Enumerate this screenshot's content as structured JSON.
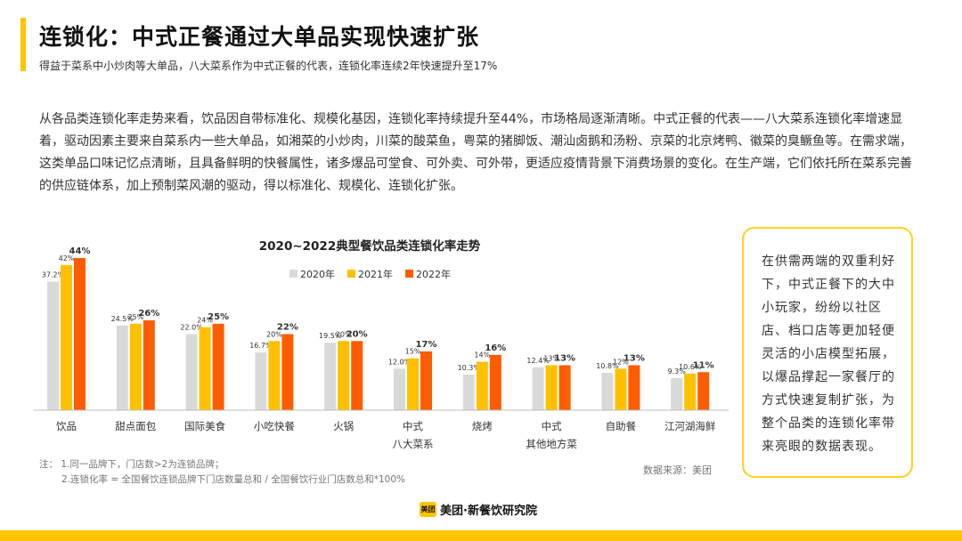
{
  "colors": {
    "accent": "#FFC400",
    "grey": "#D9D9D9",
    "yellow": "#FFC000",
    "orange": "#FF5C00",
    "axis": "#BFBFBF"
  },
  "header": {
    "title": "连锁化：中式正餐通过大单品实现快速扩张",
    "subtitle": "得益于菜系中小炒肉等大单品，八大菜系作为中式正餐的代表，连锁化率连续2年快速提升至17%"
  },
  "body_text": "从各品类连锁化率走势来看，饮品因自带标准化、规模化基因，连锁化率持续提升至44%，市场格局逐渐清晰。中式正餐的代表——八大菜系连锁化率增速显着，驱动因素主要来自菜系内一些大单品，如湘菜的小炒肉，川菜的酸菜鱼，粤菜的猪脚饭、潮汕卤鹅和汤粉、京菜的北京烤鸭、徽菜的臭鳜鱼等。在需求端，这类单品口味记忆点清晰，且具备鲜明的快餐属性，诸多爆品可堂食、可外卖、可外带，更适应疫情背景下消费场景的变化。在生产端，它们依托所在菜系完善的供应链体系，加上预制菜风潮的驱动，得以标准化、规模化、连锁化扩张。",
  "callout": "在供需两端的双重利好下，中式正餐下的大中小玩家，纷纷以社区店、档口店等更加轻便灵活的小店模型拓展，以爆品撑起一家餐厅的方式快速复制扩张，为整个品类的连锁化率带来亮眼的数据表现。",
  "notes": {
    "line1": "注：  1.同一品牌下，门店数>2为连锁品牌；",
    "line2": "2.连锁化率 = 全国餐饮连锁品牌下门店数量总和 / 全国餐饮行业门店数总和*100%"
  },
  "source": "数据来源：美团",
  "brand": {
    "logo_text": "美团",
    "name": "美团·新餐饮研究院"
  },
  "chart_data": {
    "type": "bar",
    "title": "2020~2022典型餐饮品类连锁化率走势",
    "categories": [
      {
        "line1": "饮品",
        "line2": ""
      },
      {
        "line1": "甜点面包",
        "line2": ""
      },
      {
        "line1": "国际美食",
        "line2": ""
      },
      {
        "line1": "小吃快餐",
        "line2": ""
      },
      {
        "line1": "火锅",
        "line2": ""
      },
      {
        "line1": "中式",
        "line2": "八大菜系"
      },
      {
        "line1": "烧烤",
        "line2": ""
      },
      {
        "line1": "中式",
        "line2": "其他地方菜"
      },
      {
        "line1": "自助餐",
        "line2": ""
      },
      {
        "line1": "江河湖海鲜",
        "line2": ""
      }
    ],
    "series": [
      {
        "name": "2020年",
        "color": "#D9D9D9",
        "values": [
          37.2,
          24.5,
          22.0,
          16.7,
          19.5,
          12.0,
          10.3,
          12.4,
          10.8,
          9.3
        ],
        "labels": [
          "37.2%",
          "24.5%",
          "22.0%",
          "16.7%",
          "19.5%",
          "12.0%",
          "10.3%",
          "12.4%",
          "10.8%",
          "9.3%"
        ]
      },
      {
        "name": "2021年",
        "color": "#FFC000",
        "values": [
          42,
          25,
          24,
          20,
          20,
          15,
          14,
          13,
          12,
          10.6
        ],
        "labels": [
          "42%",
          "25%",
          "24%",
          "20%",
          "20%",
          "15%",
          "14%",
          "13%",
          "12%",
          "10.6%"
        ]
      },
      {
        "name": "2022年",
        "color": "#FF5C00",
        "values": [
          44,
          26,
          25,
          22,
          20,
          17,
          16,
          13,
          13,
          11
        ],
        "labels": [
          "44%",
          "26%",
          "25%",
          "22%",
          "20%",
          "17%",
          "16%",
          "13%",
          "13%",
          "11%"
        ]
      }
    ],
    "ylim": [
      0,
      44
    ],
    "legend_position": "top-center",
    "grid": false
  }
}
